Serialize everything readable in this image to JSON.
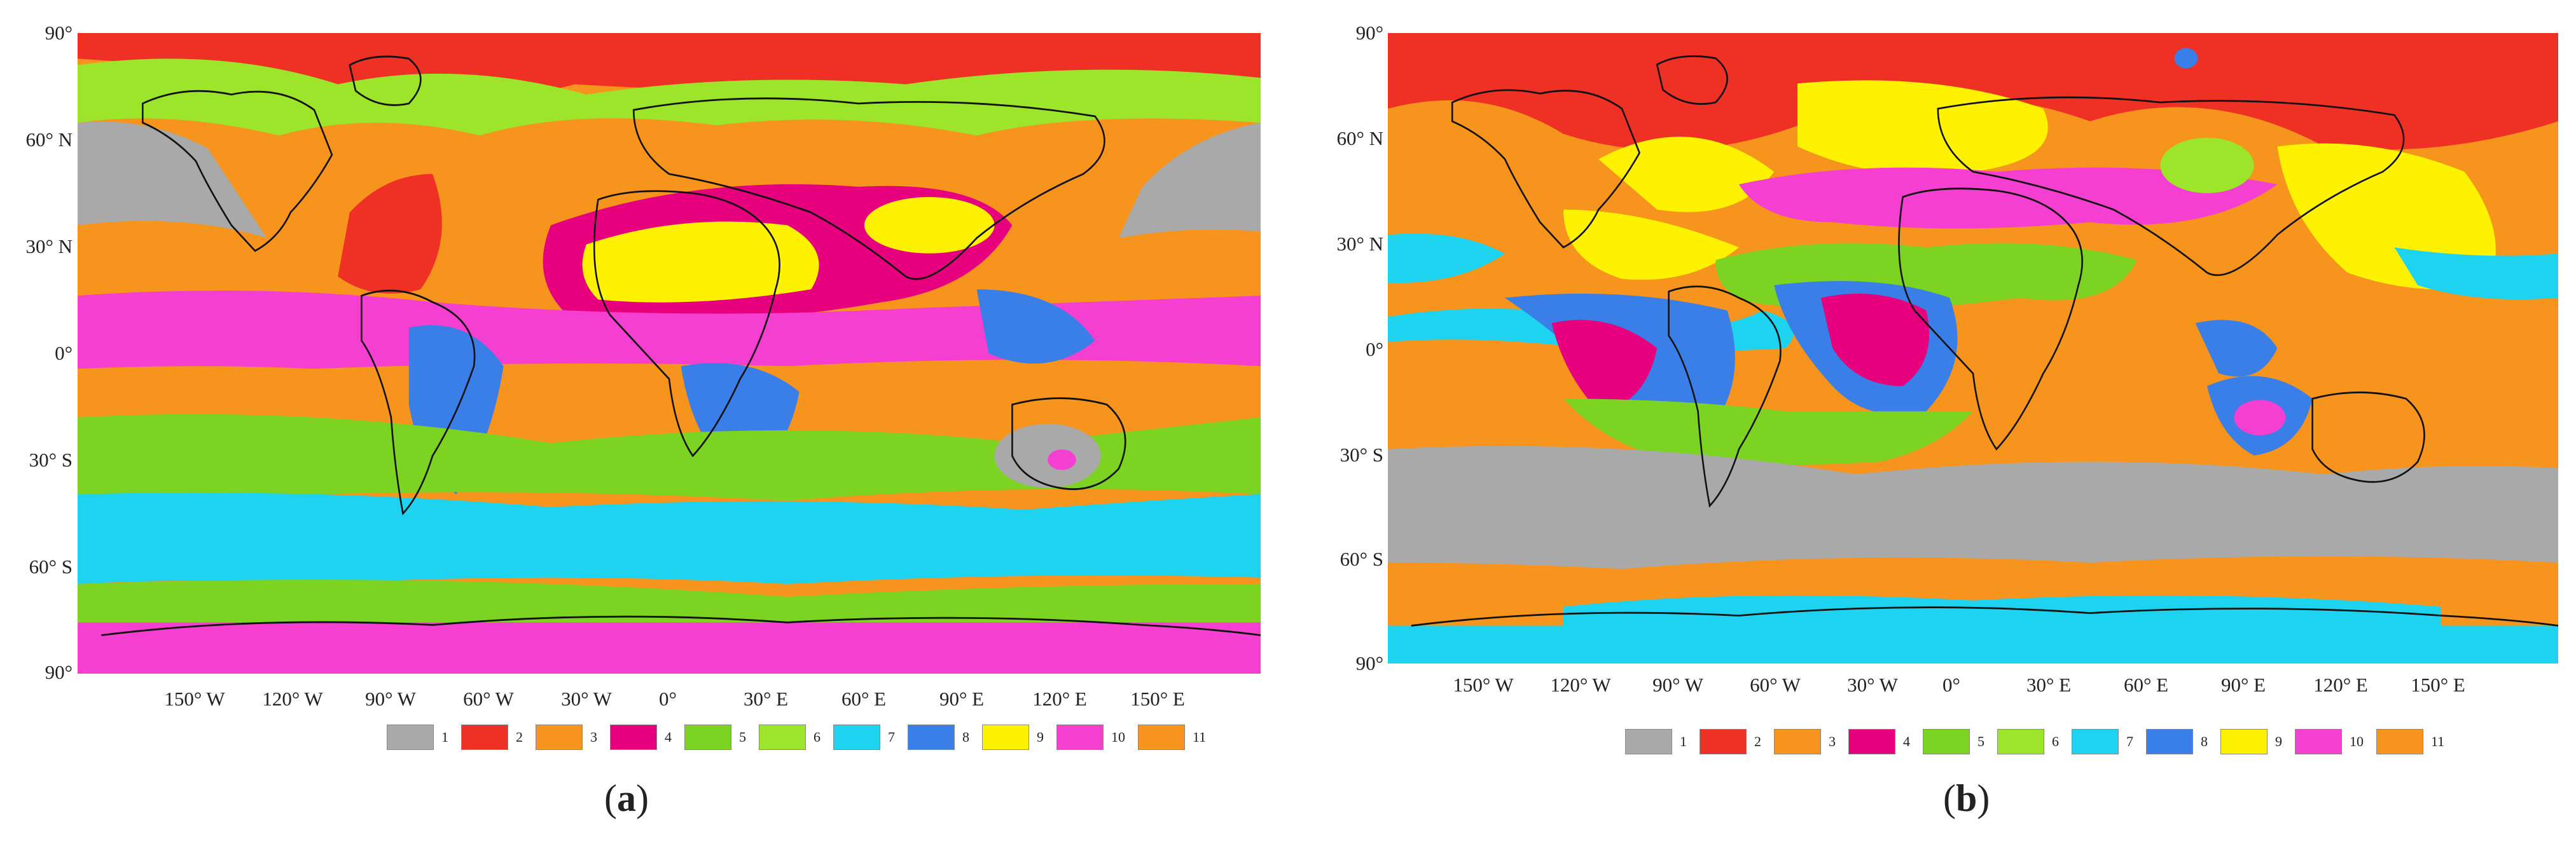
{
  "lat_labels": [
    "90°",
    "60° N",
    "30° N",
    "0°",
    "30° S",
    "60° S",
    "90°"
  ],
  "lon_labels": [
    "150° W",
    "120° W",
    "90° W",
    "60° W",
    "30° W",
    "0°",
    "30° E",
    "60° E",
    "90° E",
    "120° E",
    "150° E"
  ],
  "legend": [
    {
      "label": "1",
      "color": "#a9a9a9"
    },
    {
      "label": "2",
      "color": "#ee3124"
    },
    {
      "label": "3",
      "color": "#f7941d"
    },
    {
      "label": "4",
      "color": "#e6007e"
    },
    {
      "label": "5",
      "color": "#7dd321"
    },
    {
      "label": "6",
      "color": "#9ce52a"
    },
    {
      "label": "7",
      "color": "#1ed3ef"
    },
    {
      "label": "8",
      "color": "#3a7ee8"
    },
    {
      "label": "9",
      "color": "#fff200"
    },
    {
      "label": "10",
      "color": "#f53fd1"
    },
    {
      "label": "11",
      "color": "#f7941d"
    }
  ],
  "coastline_color": "#111111",
  "panels": [
    {
      "letter": "a",
      "paren_open": "(",
      "paren_close": ")"
    },
    {
      "letter": "b",
      "paren_open": "(",
      "paren_close": ")"
    }
  ]
}
